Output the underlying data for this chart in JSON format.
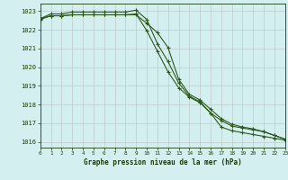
{
  "title": "Graphe pression niveau de la mer (hPa)",
  "xlabel_hours": [
    0,
    1,
    2,
    3,
    4,
    5,
    6,
    7,
    8,
    9,
    10,
    11,
    12,
    13,
    14,
    15,
    16,
    17,
    18,
    19,
    20,
    21,
    22,
    23
  ],
  "line1": [
    1022.6,
    1022.85,
    1022.85,
    1022.95,
    1022.95,
    1022.95,
    1022.95,
    1022.95,
    1022.95,
    1023.05,
    1022.55,
    1021.25,
    1020.3,
    1019.15,
    1018.45,
    1018.15,
    1017.55,
    1017.15,
    1016.85,
    1016.75,
    1016.65,
    1016.55,
    1016.35,
    1016.15
  ],
  "line2": [
    1022.6,
    1022.75,
    1022.75,
    1022.8,
    1022.8,
    1022.8,
    1022.8,
    1022.8,
    1022.8,
    1022.8,
    1022.35,
    1021.85,
    1021.05,
    1019.35,
    1018.55,
    1018.25,
    1017.75,
    1017.25,
    1016.95,
    1016.8,
    1016.7,
    1016.55,
    1016.35,
    1016.15
  ],
  "line3": [
    1022.55,
    1022.75,
    1022.75,
    1022.8,
    1022.8,
    1022.8,
    1022.8,
    1022.8,
    1022.8,
    1022.85,
    1021.95,
    1020.85,
    1019.75,
    1018.9,
    1018.4,
    1018.1,
    1017.55,
    1016.8,
    1016.6,
    1016.5,
    1016.4,
    1016.3,
    1016.2,
    1016.1
  ],
  "line_color": "#2d5a1b",
  "background_color": "#d4efef",
  "grid_color": "#c8d8d8",
  "label_color": "#1a3a0a",
  "ylim": [
    1015.7,
    1023.4
  ],
  "yticks": [
    1016,
    1017,
    1018,
    1019,
    1020,
    1021,
    1022,
    1023
  ],
  "xlim": [
    0,
    23
  ]
}
